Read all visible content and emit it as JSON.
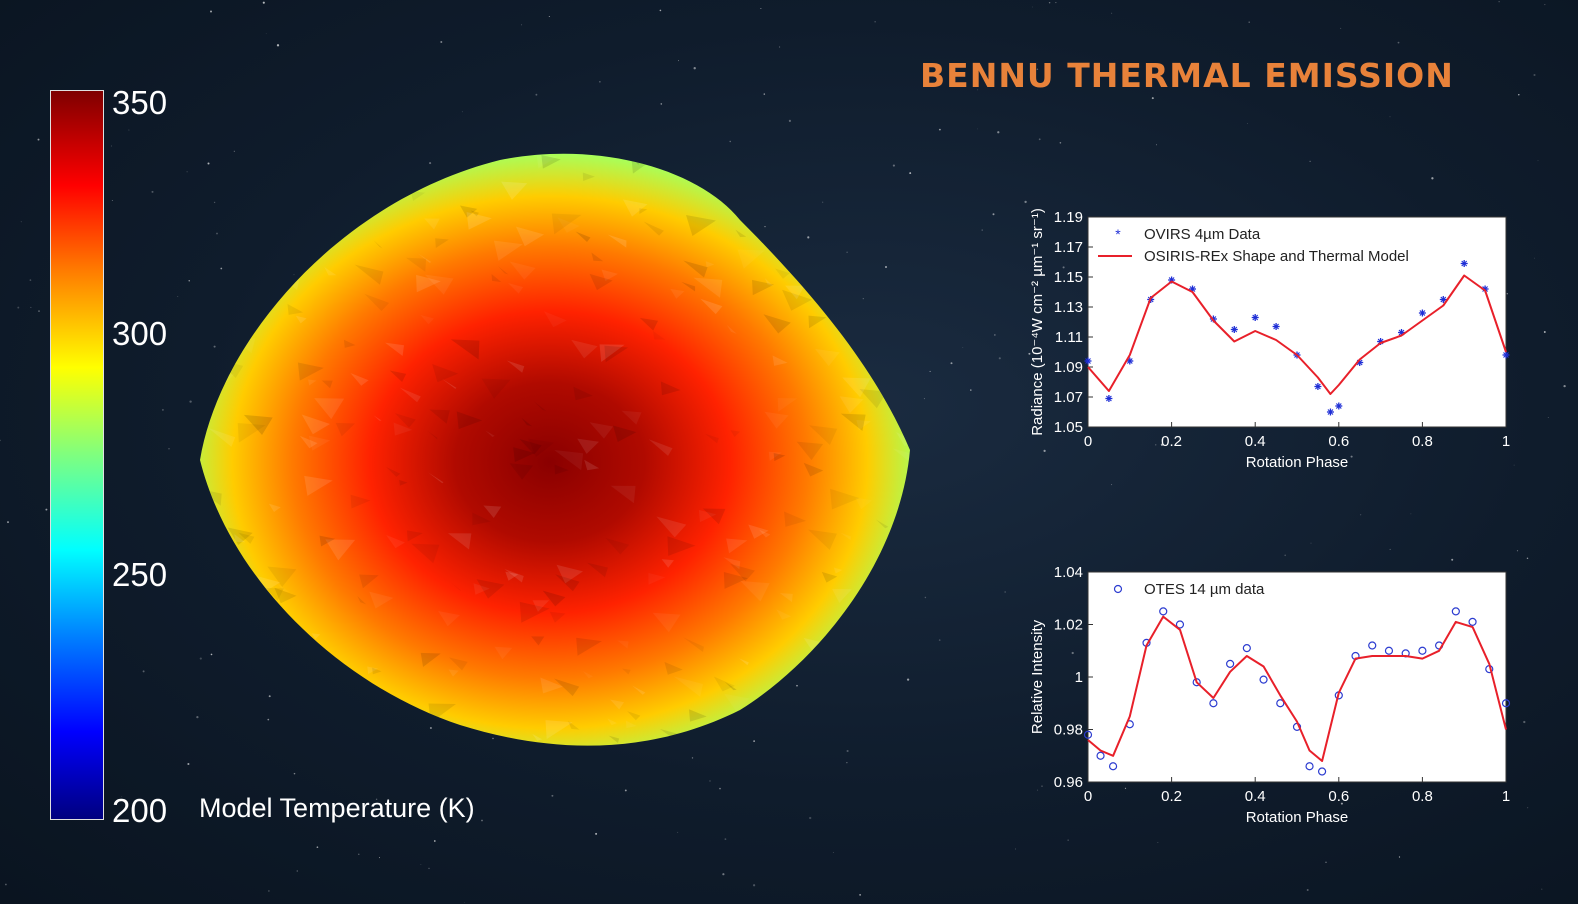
{
  "title": "BENNU THERMAL EMISSION",
  "colorbar": {
    "label": "Model Temperature (K)",
    "ticks": [
      "350",
      "300",
      "250",
      "200"
    ],
    "tick_values": [
      350,
      300,
      250,
      200
    ],
    "range": [
      200,
      350
    ],
    "colormap": [
      "#00007f",
      "#0000ff",
      "#007fff",
      "#00ffff",
      "#7fff7f",
      "#ffff00",
      "#ff7f00",
      "#ff0000",
      "#7f0000"
    ]
  },
  "chart_data": [
    {
      "type": "scatter",
      "xlabel": "Rotation Phase",
      "ylabel": "Radiance (10⁻⁴W cm⁻² µm⁻¹ sr⁻¹)",
      "xlim": [
        0,
        1
      ],
      "ylim": [
        1.05,
        1.19
      ],
      "xticks": [
        "0",
        "0.2",
        "0.4",
        "0.6",
        "0.8",
        "1"
      ],
      "yticks": [
        "1.05",
        "1.07",
        "1.09",
        "1.11",
        "1.13",
        "1.15",
        "1.17",
        "1.19"
      ],
      "legend_position": "top-left",
      "series": [
        {
          "name": "OVIRS 4µm Data",
          "kind": "points",
          "marker": "asterisk",
          "color": "#1f2fd6",
          "x": [
            0,
            0.05,
            0.1,
            0.15,
            0.2,
            0.25,
            0.3,
            0.35,
            0.4,
            0.45,
            0.5,
            0.55,
            0.58,
            0.6,
            0.65,
            0.7,
            0.75,
            0.8,
            0.85,
            0.9,
            0.95,
            1
          ],
          "y": [
            1.094,
            1.069,
            1.094,
            1.135,
            1.148,
            1.142,
            1.122,
            1.115,
            1.123,
            1.117,
            1.098,
            1.077,
            1.06,
            1.064,
            1.093,
            1.107,
            1.113,
            1.126,
            1.135,
            1.159,
            1.142,
            1.098
          ]
        },
        {
          "name": "OSIRIS-REx Shape and Thermal Model",
          "kind": "line",
          "color": "#e8202a",
          "x": [
            0,
            0.05,
            0.1,
            0.15,
            0.2,
            0.25,
            0.3,
            0.35,
            0.4,
            0.45,
            0.5,
            0.55,
            0.58,
            0.6,
            0.65,
            0.7,
            0.75,
            0.8,
            0.85,
            0.9,
            0.95,
            1
          ],
          "y": [
            1.09,
            1.074,
            1.098,
            1.136,
            1.147,
            1.14,
            1.121,
            1.107,
            1.114,
            1.108,
            1.098,
            1.083,
            1.072,
            1.078,
            1.095,
            1.106,
            1.111,
            1.121,
            1.131,
            1.151,
            1.141,
            1.1
          ]
        }
      ]
    },
    {
      "type": "scatter",
      "xlabel": "Rotation Phase",
      "ylabel": "Relative Intensity",
      "xlim": [
        0,
        1
      ],
      "ylim": [
        0.96,
        1.04
      ],
      "xticks": [
        "0",
        "0.2",
        "0.4",
        "0.6",
        "0.8",
        "1"
      ],
      "yticks": [
        "0.96",
        "0.98",
        "1",
        "1.02",
        "1.04"
      ],
      "legend_position": "top-left",
      "series": [
        {
          "name": "OTES 14 µm data",
          "kind": "points",
          "marker": "circle",
          "color": "#2c3cd0",
          "x": [
            0,
            0.03,
            0.06,
            0.1,
            0.14,
            0.18,
            0.22,
            0.26,
            0.3,
            0.34,
            0.38,
            0.42,
            0.46,
            0.5,
            0.53,
            0.56,
            0.6,
            0.64,
            0.68,
            0.72,
            0.76,
            0.8,
            0.84,
            0.88,
            0.92,
            0.96,
            1
          ],
          "y": [
            0.978,
            0.97,
            0.966,
            0.982,
            1.013,
            1.025,
            1.02,
            0.998,
            0.99,
            1.005,
            1.011,
            0.999,
            0.99,
            0.981,
            0.966,
            0.964,
            0.993,
            1.008,
            1.012,
            1.01,
            1.009,
            1.01,
            1.012,
            1.025,
            1.021,
            1.003,
            0.99
          ]
        },
        {
          "name": "",
          "kind": "line",
          "color": "#e8202a",
          "x": [
            0,
            0.03,
            0.06,
            0.1,
            0.14,
            0.18,
            0.22,
            0.26,
            0.3,
            0.34,
            0.38,
            0.42,
            0.46,
            0.5,
            0.53,
            0.56,
            0.6,
            0.64,
            0.68,
            0.72,
            0.76,
            0.8,
            0.84,
            0.88,
            0.92,
            0.96,
            1
          ],
          "y": [
            0.976,
            0.972,
            0.97,
            0.985,
            1.012,
            1.023,
            1.018,
            0.998,
            0.992,
            1.002,
            1.008,
            1.004,
            0.993,
            0.983,
            0.972,
            0.968,
            0.994,
            1.007,
            1.008,
            1.008,
            1.008,
            1.007,
            1.01,
            1.021,
            1.019,
            1.005,
            0.98
          ]
        }
      ]
    }
  ]
}
